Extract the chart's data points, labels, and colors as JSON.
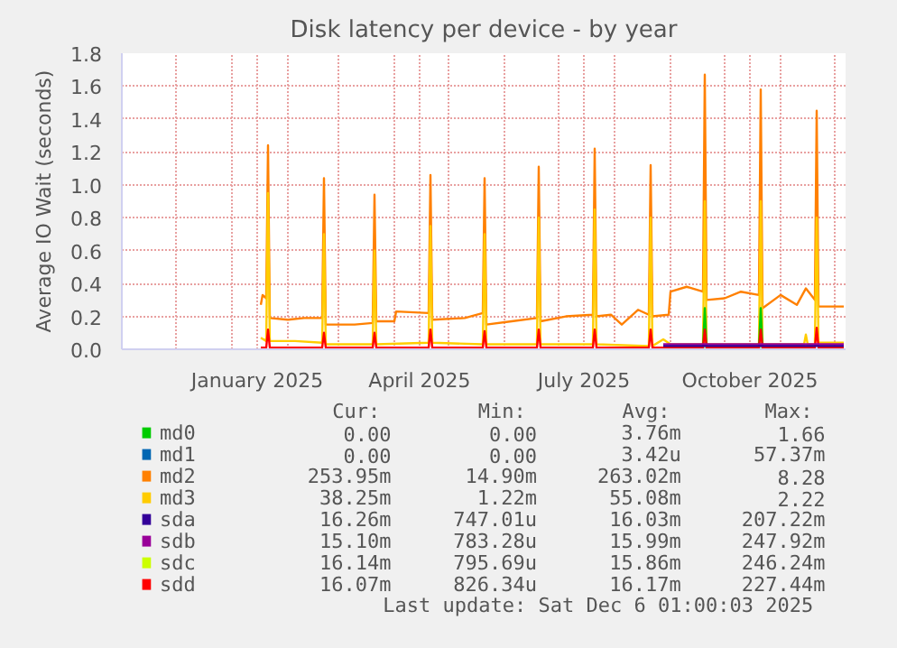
{
  "chart_data": {
    "type": "line",
    "title": "Disk latency per device - by year",
    "ylabel": "Average IO Wait (seconds)",
    "xlim": [
      "2024-11-01",
      "2025-12-07"
    ],
    "xticks": [
      {
        "value": "2024-11-01",
        "label": null
      },
      {
        "value": "2024-12-01",
        "label": null
      },
      {
        "value": "2025-01-01",
        "label": null
      },
      {
        "value": "2025-01-15",
        "label": "January 2025"
      },
      {
        "value": "2025-02-01",
        "label": null
      },
      {
        "value": "2025-03-01",
        "label": null
      },
      {
        "value": "2025-04-01",
        "label": null
      },
      {
        "value": "2025-04-15",
        "label": "April 2025"
      },
      {
        "value": "2025-05-01",
        "label": null
      },
      {
        "value": "2025-06-01",
        "label": null
      },
      {
        "value": "2025-07-01",
        "label": null
      },
      {
        "value": "2025-07-15",
        "label": "July 2025"
      },
      {
        "value": "2025-08-01",
        "label": null
      },
      {
        "value": "2025-09-01",
        "label": null
      },
      {
        "value": "2025-10-01",
        "label": null
      },
      {
        "value": "2025-10-15",
        "label": "October 2025"
      },
      {
        "value": "2025-11-01",
        "label": null
      },
      {
        "value": "2025-12-01",
        "label": null
      }
    ],
    "ylim": [
      0,
      1.8
    ],
    "yticks": [
      {
        "value": 0,
        "label": "0.0"
      },
      {
        "value": 0.2,
        "label": "0.2"
      },
      {
        "value": 0.4,
        "label": "0.4"
      },
      {
        "value": 0.6,
        "label": "0.6"
      },
      {
        "value": 0.8,
        "label": "0.8"
      },
      {
        "value": 1,
        "label": "1.0"
      },
      {
        "value": 1.2,
        "label": "1.2"
      },
      {
        "value": 1.4,
        "label": "1.4"
      },
      {
        "value": 1.6,
        "label": "1.6"
      },
      {
        "value": 1.8,
        "label": "1.8"
      }
    ],
    "grid": true,
    "legend": "bottom",
    "series": [
      {
        "name": "md0",
        "color": "#00cc00",
        "x": [
          "2025-09-19",
          "2025-09-20",
          "2025-09-21",
          "2025-10-05",
          "2025-10-20",
          "2025-10-21",
          "2025-10-22"
        ],
        "values": [
          0,
          0.25,
          0,
          null,
          0,
          0.25,
          0
        ]
      },
      {
        "name": "md1",
        "color": "#0066b3"
      },
      {
        "name": "md2",
        "color": "#ff8000",
        "x": [
          "2025-01-17",
          "2025-01-18",
          "2025-01-20",
          "2025-01-21",
          "2025-01-22",
          "2025-02-01",
          "2025-02-10",
          "2025-02-20",
          "2025-02-21",
          "2025-02-22",
          "2025-03-10",
          "2025-03-20",
          "2025-03-21",
          "2025-03-22",
          "2025-04-01",
          "2025-04-02",
          "2025-04-20",
          "2025-04-21",
          "2025-04-22",
          "2025-05-10",
          "2025-05-20",
          "2025-05-21",
          "2025-05-22",
          "2025-06-05",
          "2025-06-19",
          "2025-06-20",
          "2025-06-21",
          "2025-07-05",
          "2025-07-20",
          "2025-07-21",
          "2025-07-22",
          "2025-07-30",
          "2025-08-05",
          "2025-08-14",
          "2025-08-20",
          "2025-08-21",
          "2025-08-22",
          "2025-08-31",
          "2025-09-01",
          "2025-09-10",
          "2025-09-19",
          "2025-09-20",
          "2025-09-21",
          "2025-10-01",
          "2025-10-10",
          "2025-10-20",
          "2025-10-21",
          "2025-10-22",
          "2025-11-01",
          "2025-11-10",
          "2025-11-15",
          "2025-11-20",
          "2025-11-21",
          "2025-11-22",
          "2025-12-06"
        ],
        "values": [
          0.27,
          0.33,
          0.31,
          1.24,
          0.19,
          0.18,
          0.19,
          0.19,
          1.04,
          0.15,
          0.15,
          0.16,
          0.94,
          0.17,
          0.17,
          0.23,
          0.22,
          1.06,
          0.18,
          0.19,
          0.22,
          1.04,
          0.15,
          0.17,
          0.19,
          1.11,
          0.17,
          0.2,
          0.21,
          1.22,
          0.2,
          0.21,
          0.15,
          0.24,
          0.21,
          1.12,
          0.2,
          0.21,
          0.35,
          0.38,
          0.35,
          1.67,
          0.3,
          0.31,
          0.35,
          0.33,
          1.58,
          0.25,
          0.33,
          0.27,
          0.37,
          0.3,
          1.45,
          0.26,
          0.26
        ]
      },
      {
        "name": "md3",
        "color": "#ffcc00",
        "x": [
          "2025-01-17",
          "2025-01-20",
          "2025-01-21",
          "2025-01-22",
          "2025-02-05",
          "2025-02-20",
          "2025-02-21",
          "2025-02-22",
          "2025-03-20",
          "2025-03-21",
          "2025-03-22",
          "2025-04-20",
          "2025-04-21",
          "2025-04-22",
          "2025-05-20",
          "2025-05-21",
          "2025-05-22",
          "2025-06-19",
          "2025-06-20",
          "2025-06-21",
          "2025-07-20",
          "2025-07-21",
          "2025-07-22",
          "2025-08-20",
          "2025-08-21",
          "2025-08-22",
          "2025-08-28",
          "2025-09-01",
          "2025-09-19",
          "2025-09-20",
          "2025-09-21",
          "2025-10-20",
          "2025-10-21",
          "2025-10-22",
          "2025-11-14",
          "2025-11-15",
          "2025-11-16",
          "2025-11-20",
          "2025-11-21",
          "2025-11-22",
          "2025-12-06"
        ],
        "values": [
          0.07,
          0.05,
          0.95,
          0.05,
          0.05,
          0.04,
          0.7,
          0.03,
          0.03,
          0.6,
          0.03,
          0.04,
          0.75,
          0.04,
          0.03,
          0.7,
          0.03,
          0.03,
          0.8,
          0.03,
          0.03,
          0.85,
          0.03,
          0.02,
          0.8,
          0.02,
          0.06,
          0.03,
          0.03,
          0.9,
          0.03,
          0.03,
          0.9,
          0.03,
          0.03,
          0.09,
          0.03,
          0.03,
          0.8,
          0.04,
          0.04
        ]
      },
      {
        "name": "sda",
        "color": "#330099",
        "x": [
          "2025-08-28",
          "2025-12-06"
        ],
        "values": [
          0.02,
          0.02
        ]
      },
      {
        "name": "sdb",
        "color": "#990099",
        "x": [
          "2025-08-28",
          "2025-12-06"
        ],
        "values": [
          0.03,
          0.03
        ]
      },
      {
        "name": "sdc",
        "color": "#ccff00"
      },
      {
        "name": "sdd",
        "color": "#ff0000",
        "x": [
          "2025-01-17",
          "2025-01-20",
          "2025-01-21",
          "2025-01-22",
          "2025-02-20",
          "2025-02-21",
          "2025-02-22",
          "2025-03-20",
          "2025-03-21",
          "2025-03-22",
          "2025-04-20",
          "2025-04-21",
          "2025-04-22",
          "2025-05-20",
          "2025-05-21",
          "2025-05-22",
          "2025-06-19",
          "2025-06-20",
          "2025-06-21",
          "2025-07-20",
          "2025-07-21",
          "2025-07-22",
          "2025-08-20",
          "2025-08-21",
          "2025-08-22",
          "2025-09-19",
          "2025-09-20",
          "2025-09-21",
          "2025-10-20",
          "2025-10-21",
          "2025-10-22",
          "2025-11-20",
          "2025-11-21",
          "2025-11-22",
          "2025-12-06"
        ],
        "values": [
          0.01,
          0.01,
          0.12,
          0.01,
          0.01,
          0.1,
          0.01,
          0.01,
          0.1,
          0.01,
          0.01,
          0.12,
          0.01,
          0.01,
          0.11,
          0.01,
          0.01,
          0.12,
          0.01,
          0.01,
          0.12,
          0.01,
          0.01,
          0.12,
          0.01,
          0.01,
          0.12,
          0.01,
          0.01,
          0.12,
          0.01,
          0.01,
          0.13,
          0.01,
          0.01
        ]
      }
    ],
    "annotations": [
      "Cur:",
      "Min:",
      "Avg:",
      "Max:",
      "0.00",
      "0.00",
      "3.76m",
      "1.66",
      "0.00",
      "0.00",
      "3.42u",
      "57.37m",
      "253.95m",
      "14.90m",
      "263.02m",
      "8.28",
      "38.25m",
      "1.22m",
      "55.08m",
      "2.22",
      "16.26m",
      "747.01u",
      "16.03m",
      "207.22m",
      "15.10m",
      "783.28u",
      "15.99m",
      "247.92m",
      "16.14m",
      "795.69u",
      "15.86m",
      "246.24m",
      "16.07m",
      "826.34u",
      "16.17m",
      "227.44m",
      "Last update: Sat Dec  6 01:00:03 2025"
    ]
  }
}
